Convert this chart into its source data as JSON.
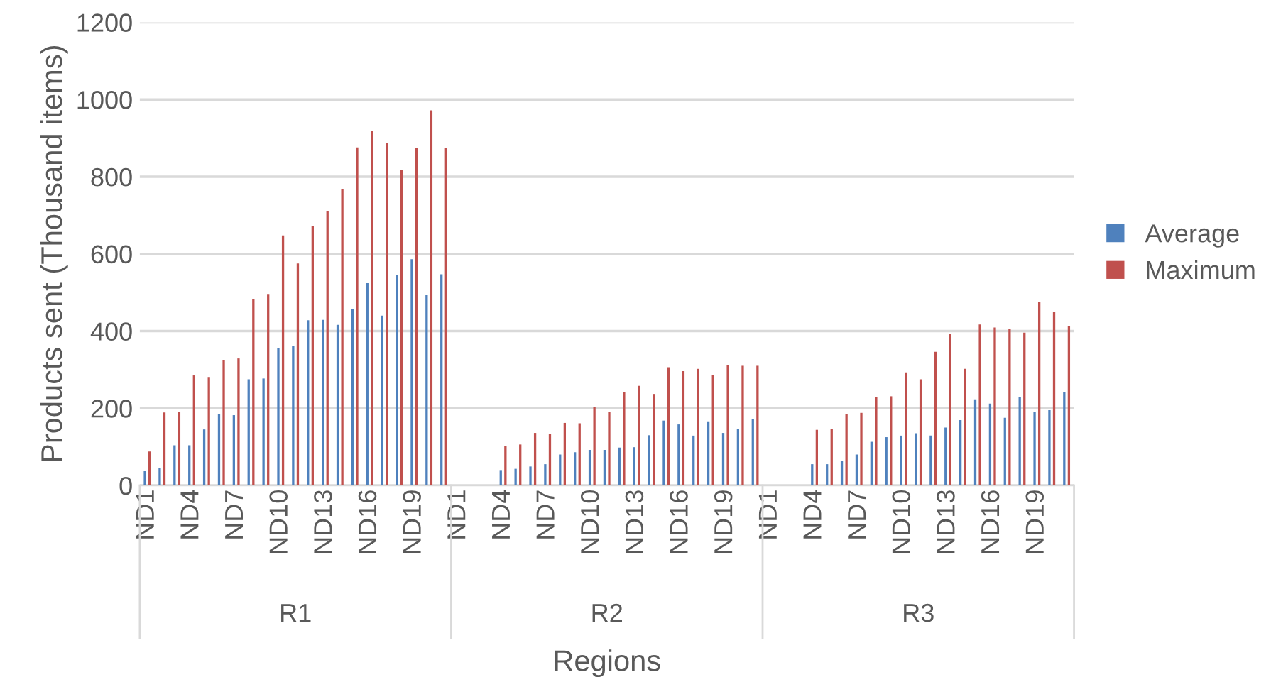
{
  "chart_data": {
    "type": "bar",
    "xlabel": "Regions",
    "ylabel": "Products sent (Thousand items)",
    "categories": [
      "ND1",
      null,
      null,
      "ND4",
      null,
      null,
      "ND7",
      null,
      null,
      "ND10",
      null,
      null,
      "ND13",
      null,
      null,
      "ND16",
      null,
      null,
      "ND19",
      null,
      null,
      "ND1",
      null,
      null,
      "ND4",
      null,
      null,
      "ND7",
      null,
      null,
      "ND10",
      null,
      null,
      "ND13",
      null,
      null,
      "ND16",
      null,
      null,
      "ND19",
      null,
      null,
      "ND1",
      null,
      null,
      "ND4",
      null,
      null,
      "ND7",
      null,
      null,
      "ND10",
      null,
      null,
      "ND13",
      null,
      null,
      "ND16",
      null,
      null,
      "ND19",
      null,
      null
    ],
    "annotations": [
      "R1",
      "R2",
      "R3"
    ],
    "series": [
      {
        "name": "Average",
        "color": "#4f81bd",
        "values": [
          37,
          45,
          104,
          104,
          145,
          184,
          182,
          275,
          277,
          355,
          362,
          428,
          429,
          416,
          458,
          524,
          440,
          545,
          586,
          494,
          547,
          null,
          null,
          null,
          38,
          43,
          49,
          55,
          80,
          86,
          92,
          92,
          98,
          99,
          130,
          168,
          158,
          129,
          166,
          136,
          146,
          172,
          null,
          null,
          null,
          55,
          55,
          63,
          80,
          113,
          125,
          129,
          135,
          129,
          150,
          169,
          223,
          212,
          175,
          228,
          191,
          195,
          243
        ]
      },
      {
        "name": "Maximum",
        "color": "#c0504d",
        "values": [
          88,
          189,
          191,
          285,
          281,
          324,
          329,
          483,
          496,
          648,
          575,
          672,
          710,
          768,
          876,
          918,
          887,
          818,
          874,
          972,
          874,
          null,
          null,
          null,
          102,
          106,
          136,
          133,
          162,
          161,
          204,
          191,
          242,
          258,
          237,
          306,
          296,
          302,
          286,
          312,
          310,
          310,
          null,
          null,
          null,
          144,
          147,
          184,
          188,
          229,
          231,
          293,
          275,
          346,
          393,
          302,
          417,
          409,
          405,
          396,
          476,
          449,
          412
        ]
      }
    ],
    "ylim": [
      0,
      1200
    ],
    "yticks": [
      0,
      200,
      400,
      600,
      800,
      1000,
      1200
    ],
    "grid": "y",
    "legend": "right"
  }
}
